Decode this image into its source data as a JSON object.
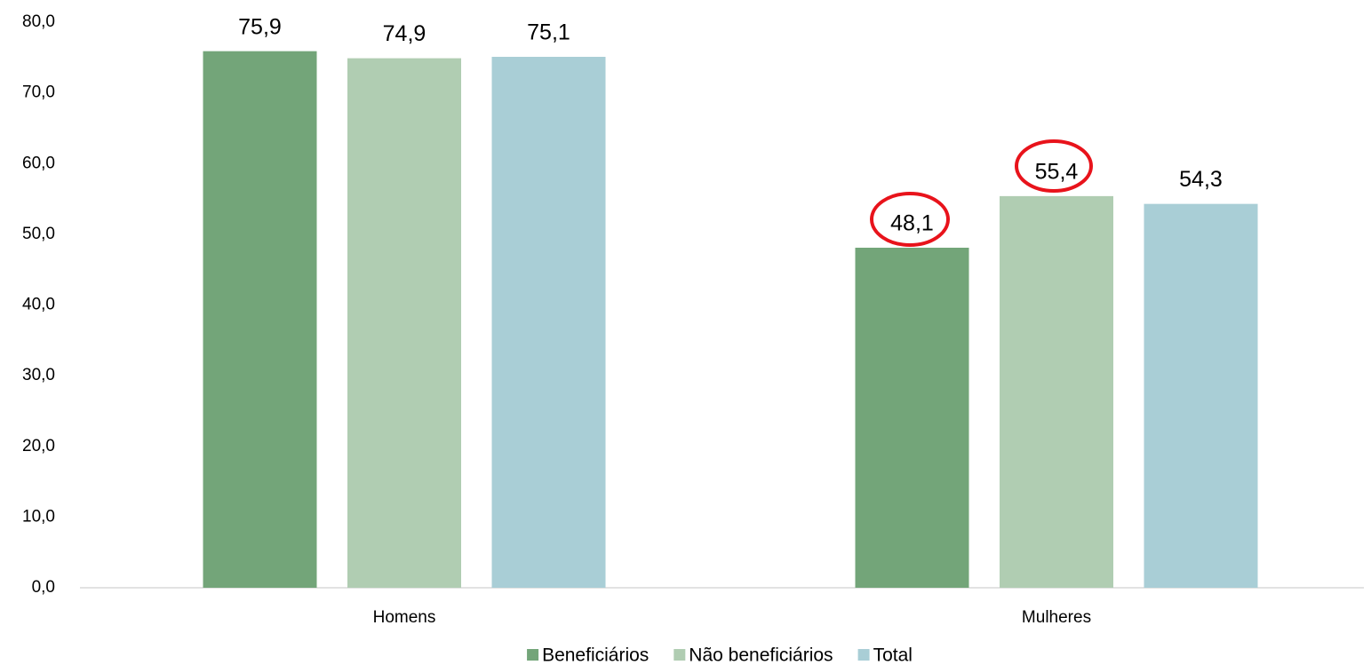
{
  "chart_data": {
    "type": "bar",
    "categories": [
      "Homens",
      "Mulheres"
    ],
    "series": [
      {
        "name": "Beneficiários",
        "color": "#73a579",
        "values": [
          75.9,
          48.1
        ],
        "value_labels": [
          "75,9",
          "48,1"
        ]
      },
      {
        "name": "Não beneficiários",
        "color": "#b0cdb2",
        "values": [
          74.9,
          55.4
        ],
        "value_labels": [
          "74,9",
          "55,4"
        ]
      },
      {
        "name": "Total",
        "color": "#a9ced6",
        "values": [
          75.1,
          54.3
        ],
        "value_labels": [
          "75,1",
          "54,3"
        ]
      }
    ],
    "ylim": [
      0,
      80
    ],
    "yticks": [
      {
        "value": 0,
        "label": "0,0"
      },
      {
        "value": 10,
        "label": "10,0"
      },
      {
        "value": 20,
        "label": "20,0"
      },
      {
        "value": 30,
        "label": "30,0"
      },
      {
        "value": 40,
        "label": "40,0"
      },
      {
        "value": 50,
        "label": "50,0"
      },
      {
        "value": 60,
        "label": "60,0"
      },
      {
        "value": 70,
        "label": "70,0"
      },
      {
        "value": 80,
        "label": "80,0"
      }
    ],
    "grid": false,
    "legend": "bottom"
  }
}
